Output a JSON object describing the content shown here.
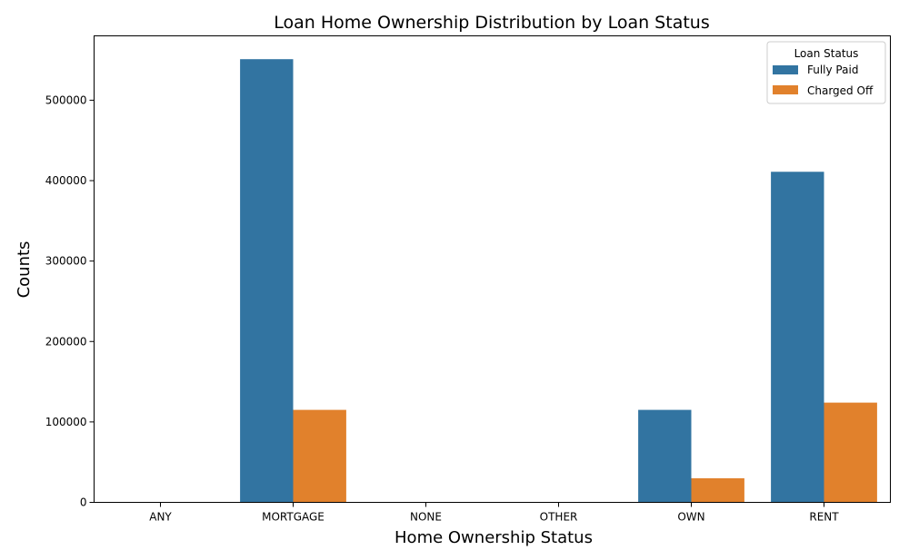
{
  "chart_data": {
    "type": "bar",
    "title": "Loan Home Ownership Distribution by Loan Status",
    "xlabel": "Home Ownership Status",
    "ylabel": "Counts",
    "categories": [
      "ANY",
      "MORTGAGE",
      "NONE",
      "OTHER",
      "OWN",
      "RENT"
    ],
    "series": [
      {
        "name": "Fully Paid",
        "color": "#3274a1",
        "values": [
          0,
          551000,
          0,
          0,
          115000,
          411000
        ]
      },
      {
        "name": "Charged Off",
        "color": "#e1812c",
        "values": [
          0,
          115000,
          0,
          0,
          30000,
          124000
        ]
      }
    ],
    "ylim": [
      0,
      580000
    ],
    "yticks": [
      0,
      100000,
      200000,
      300000,
      400000,
      500000
    ],
    "grid": false,
    "legend": {
      "title": "Loan Status",
      "position": "top-right"
    }
  }
}
